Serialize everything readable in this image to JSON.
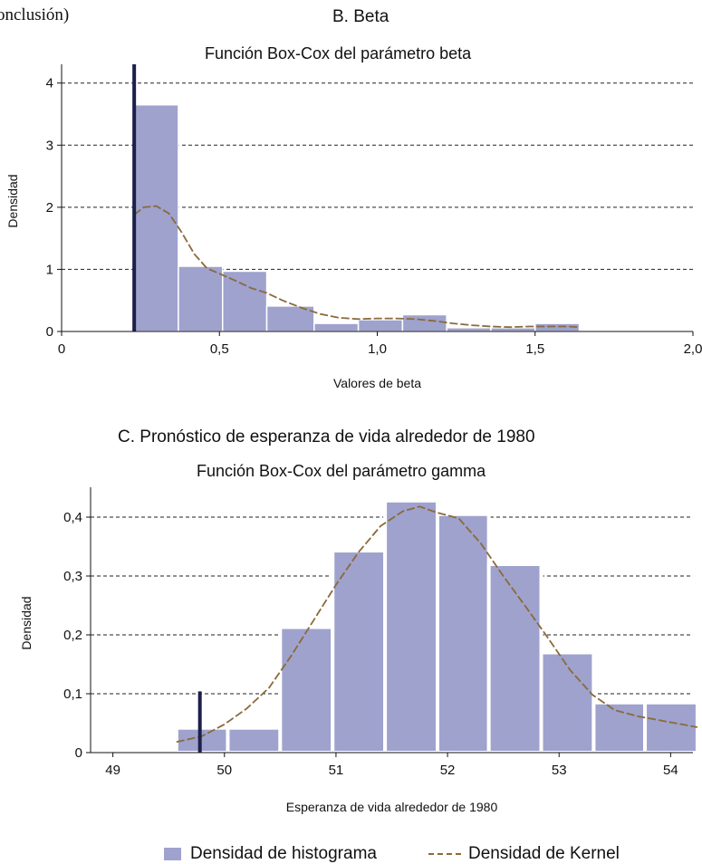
{
  "continuation": "onclusión)",
  "legend": {
    "histogram": "Densidad de histograma",
    "kernel": "Densidad de Kernel"
  },
  "colors": {
    "bar": "#9ea2cd",
    "kernel": "#8b6a3a",
    "marker": "#1c1f4a"
  },
  "chart_data": [
    {
      "type": "bar",
      "panel_title": "B. Beta",
      "title": "Función Box-Cox del parámetro beta",
      "xlabel": "Valores de beta",
      "ylabel": "Densidad",
      "xlim": [
        0,
        2.0
      ],
      "ylim": [
        0,
        4.2
      ],
      "xticks": [
        0,
        0.5,
        1.0,
        1.5,
        2.0
      ],
      "xtick_labels": [
        "0",
        "0,5",
        "1,0",
        "1,5",
        "2,0"
      ],
      "yticks": [
        0,
        1,
        2,
        3,
        4
      ],
      "ytick_labels": [
        "0",
        "1",
        "2",
        "3",
        "4"
      ],
      "grid": "horizontal dashed",
      "marker_x": 0.23,
      "bins": [
        {
          "x0": 0.23,
          "x1": 0.37,
          "density": 3.65
        },
        {
          "x0": 0.37,
          "x1": 0.51,
          "density": 1.05
        },
        {
          "x0": 0.51,
          "x1": 0.65,
          "density": 0.97
        },
        {
          "x0": 0.65,
          "x1": 0.8,
          "density": 0.41
        },
        {
          "x0": 0.8,
          "x1": 0.94,
          "density": 0.13
        },
        {
          "x0": 0.94,
          "x1": 1.08,
          "density": 0.19
        },
        {
          "x0": 1.08,
          "x1": 1.22,
          "density": 0.27
        },
        {
          "x0": 1.22,
          "x1": 1.36,
          "density": 0.06
        },
        {
          "x0": 1.36,
          "x1": 1.5,
          "density": 0.06
        },
        {
          "x0": 1.5,
          "x1": 1.64,
          "density": 0.13
        }
      ],
      "kernel": {
        "x": [
          0.23,
          0.26,
          0.3,
          0.34,
          0.38,
          0.42,
          0.46,
          0.5,
          0.55,
          0.6,
          0.65,
          0.7,
          0.76,
          0.82,
          0.88,
          0.94,
          1.0,
          1.06,
          1.12,
          1.18,
          1.24,
          1.3,
          1.36,
          1.42,
          1.48,
          1.54,
          1.6,
          1.64
        ],
        "y": [
          1.88,
          2.0,
          2.02,
          1.9,
          1.6,
          1.25,
          1.02,
          0.93,
          0.82,
          0.7,
          0.62,
          0.5,
          0.38,
          0.28,
          0.22,
          0.2,
          0.21,
          0.21,
          0.2,
          0.17,
          0.13,
          0.1,
          0.08,
          0.07,
          0.08,
          0.08,
          0.08,
          0.07
        ]
      }
    },
    {
      "type": "bar",
      "panel_title": "C. Pronóstico de esperanza de vida alrededor de 1980",
      "title": "Función Box-Cox del parámetro gamma",
      "xlabel": "Esperanza de vida alrededor de 1980",
      "ylabel": "Densidad",
      "xlim": [
        48.8,
        54.2
      ],
      "ylim": [
        0,
        0.44
      ],
      "xticks": [
        49,
        50,
        51,
        52,
        53,
        54
      ],
      "xtick_labels": [
        "49",
        "50",
        "51",
        "52",
        "53",
        "54"
      ],
      "yticks": [
        0,
        0.1,
        0.2,
        0.3,
        0.4
      ],
      "ytick_labels": [
        "0",
        "0,1",
        "0,2",
        "0,3",
        "0,4"
      ],
      "grid": "horizontal dashed",
      "marker_x": 49.78,
      "marker_top": 0.104,
      "bins": [
        {
          "x0": 49.57,
          "x1": 50.03,
          "density": 0.042
        },
        {
          "x0": 50.03,
          "x1": 50.5,
          "density": 0.042
        },
        {
          "x0": 50.5,
          "x1": 50.97,
          "density": 0.213
        },
        {
          "x0": 50.97,
          "x1": 51.44,
          "density": 0.343
        },
        {
          "x0": 51.44,
          "x1": 51.91,
          "density": 0.428
        },
        {
          "x0": 51.91,
          "x1": 52.37,
          "density": 0.405
        },
        {
          "x0": 52.37,
          "x1": 52.84,
          "density": 0.32
        },
        {
          "x0": 52.84,
          "x1": 53.31,
          "density": 0.17
        },
        {
          "x0": 53.31,
          "x1": 53.77,
          "density": 0.085
        },
        {
          "x0": 53.77,
          "x1": 54.24,
          "density": 0.085
        }
      ],
      "kernel": {
        "x": [
          49.57,
          49.8,
          50.0,
          50.2,
          50.4,
          50.6,
          50.8,
          51.0,
          51.2,
          51.4,
          51.6,
          51.75,
          51.9,
          52.1,
          52.3,
          52.5,
          52.7,
          52.9,
          53.1,
          53.3,
          53.5,
          53.7,
          53.9,
          54.1,
          54.24
        ],
        "y": [
          0.018,
          0.028,
          0.048,
          0.075,
          0.11,
          0.165,
          0.225,
          0.285,
          0.34,
          0.385,
          0.41,
          0.418,
          0.408,
          0.398,
          0.355,
          0.3,
          0.248,
          0.195,
          0.14,
          0.098,
          0.072,
          0.062,
          0.055,
          0.048,
          0.043
        ]
      }
    }
  ]
}
